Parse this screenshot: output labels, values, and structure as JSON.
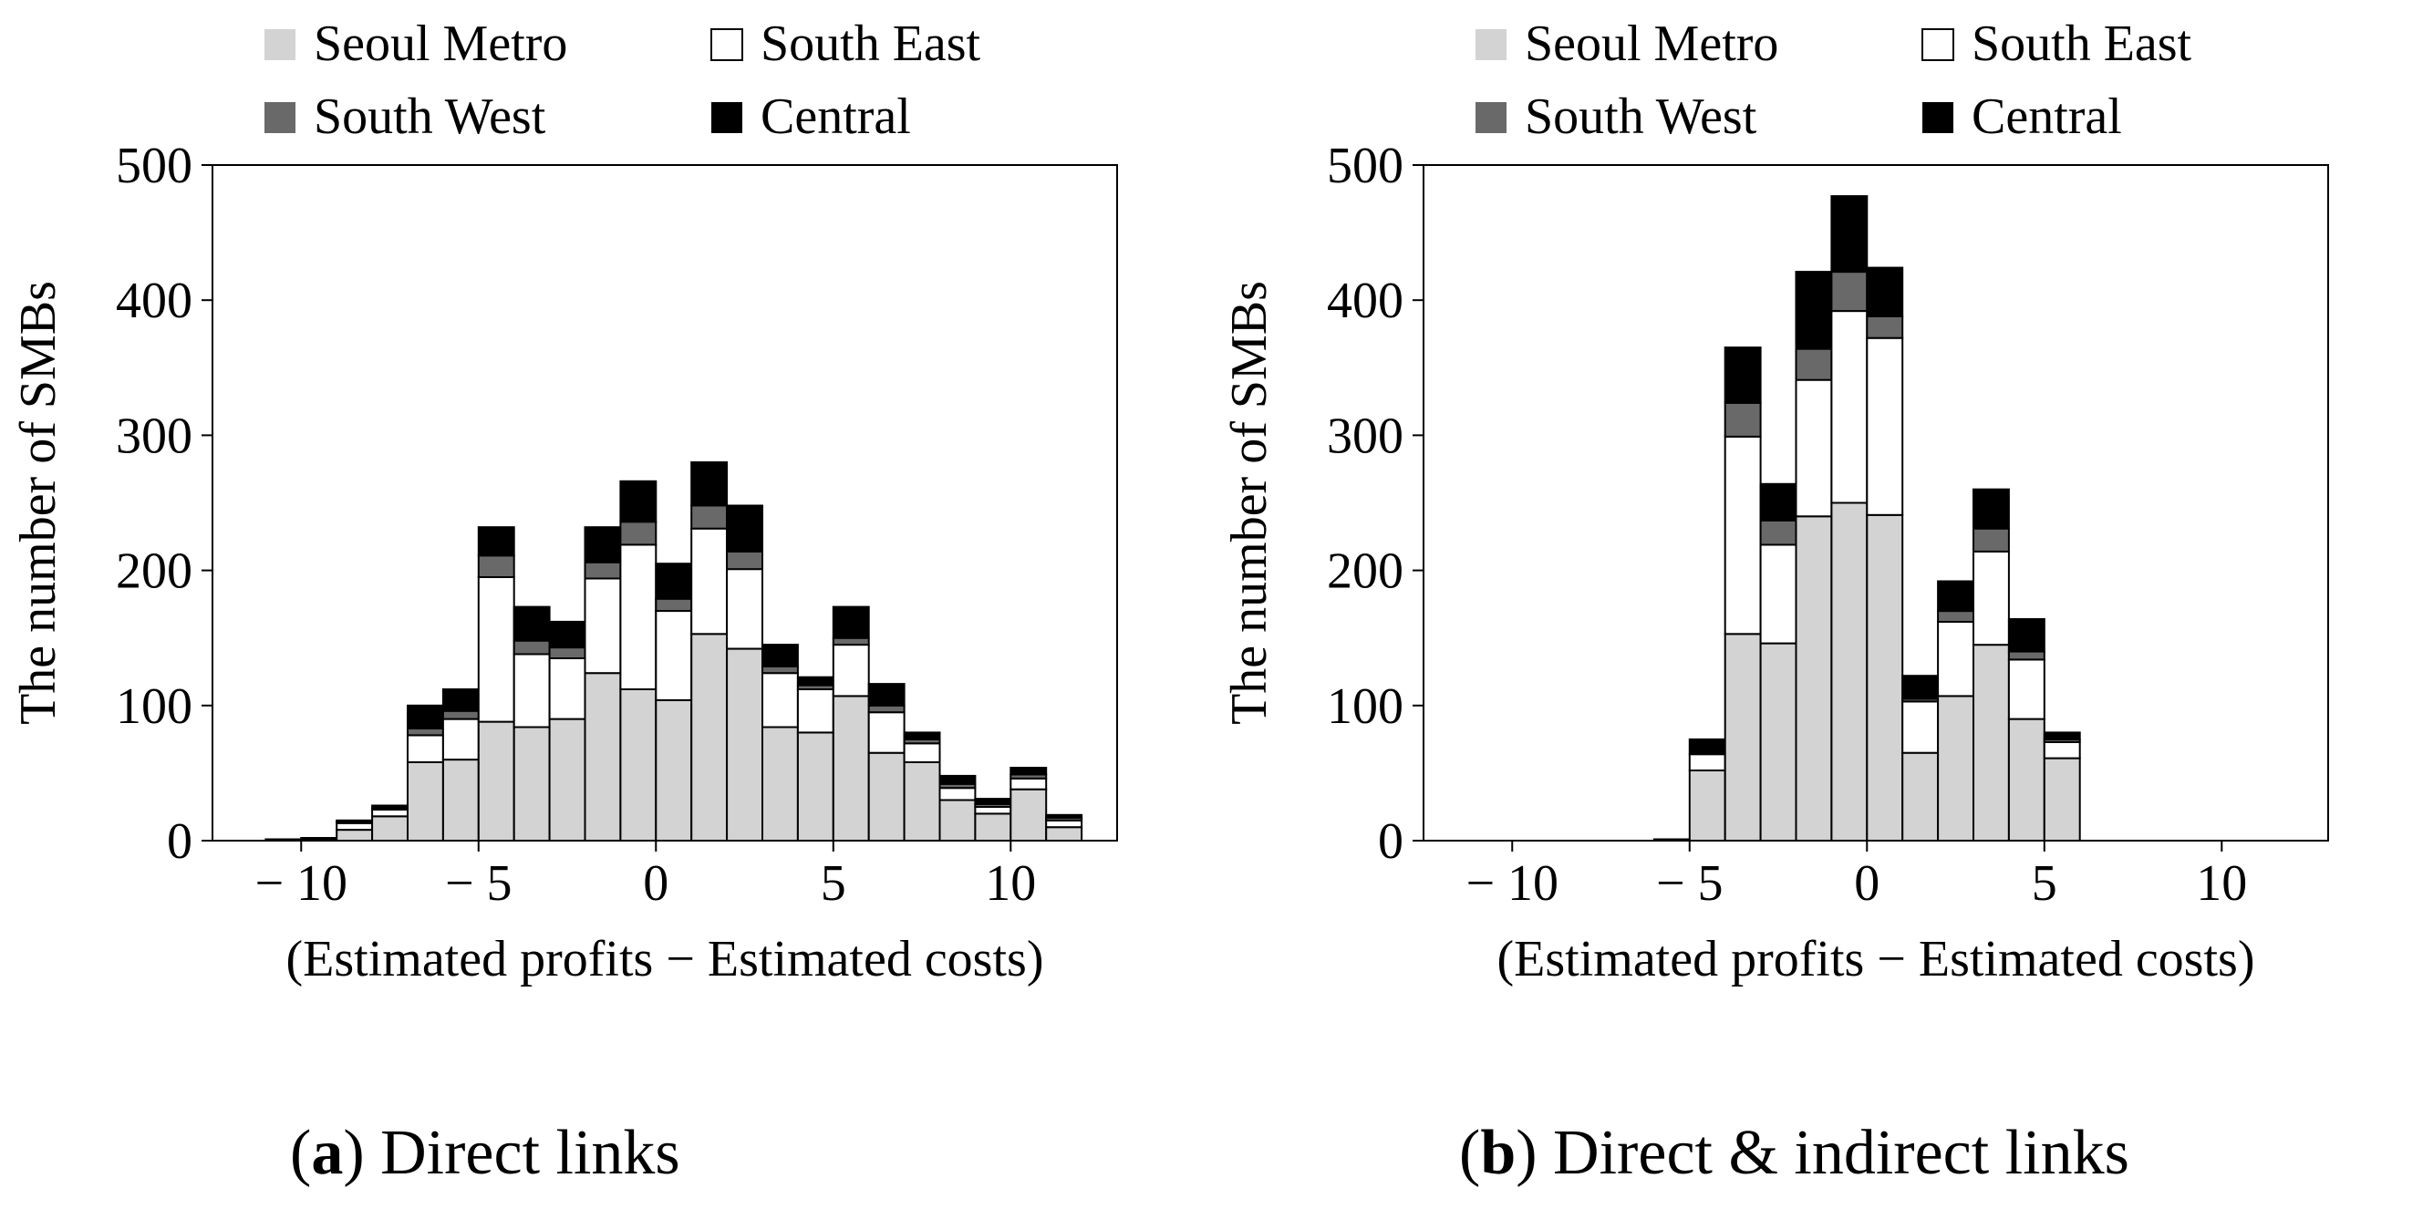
{
  "legend_colors": {
    "Seoul Metro": "#d3d3d3",
    "South East": "#ffffff",
    "South West": "#696969",
    "Central": "#000000"
  },
  "chart_data": [
    {
      "type": "bar",
      "stacked": true,
      "xlabel": "(Estimated profits − Estimated costs)",
      "ylabel": "The number of SMBs",
      "ylim": [
        0,
        500
      ],
      "yticks": [
        "0",
        "100",
        "200",
        "300",
        "400",
        "500"
      ],
      "xticks": [
        {
          "value": -10,
          "label": "− 10"
        },
        {
          "value": -5,
          "label": "− 5"
        },
        {
          "value": 0,
          "label": "0"
        },
        {
          "value": 5,
          "label": "5"
        },
        {
          "value": 10,
          "label": "10"
        }
      ],
      "xlim": [
        -12.5,
        13.0
      ],
      "bin_width": 1,
      "grid": false,
      "legend_position": "top",
      "legend": [
        "Seoul Metro",
        "South East",
        "South West",
        "Central"
      ],
      "caption_letter": "a",
      "caption_text": ") Direct links",
      "x": [
        -11.5,
        -10.5,
        -9.5,
        -8.5,
        -7.5,
        -6.5,
        -5.5,
        -4.5,
        -3.5,
        -2.5,
        -1.5,
        -0.5,
        0.5,
        1.5,
        2.5,
        3.5,
        4.5,
        5.5,
        6.5,
        7.5,
        8.5,
        9.5,
        10.5,
        11.5
      ],
      "series": [
        {
          "name": "Seoul Metro",
          "values": [
            0,
            1,
            1,
            8,
            18,
            58,
            60,
            88,
            84,
            90,
            124,
            112,
            104,
            153,
            142,
            84,
            80,
            107,
            65,
            58,
            30,
            20,
            38,
            10
          ]
        },
        {
          "name": "South East",
          "values": [
            0,
            0,
            1,
            5,
            5,
            20,
            30,
            107,
            54,
            45,
            70,
            107,
            66,
            78,
            59,
            40,
            32,
            38,
            30,
            14,
            9,
            5,
            8,
            5
          ]
        },
        {
          "name": "South West",
          "values": [
            0,
            0,
            0,
            1,
            1,
            5,
            6,
            16,
            10,
            8,
            12,
            17,
            9,
            17,
            13,
            5,
            3,
            5,
            5,
            3,
            3,
            2,
            3,
            2
          ]
        },
        {
          "name": "Central",
          "values": [
            0,
            0,
            0,
            1,
            2,
            17,
            16,
            21,
            25,
            19,
            26,
            30,
            26,
            32,
            34,
            16,
            6,
            23,
            16,
            5,
            6,
            4,
            5,
            2
          ]
        }
      ]
    },
    {
      "type": "bar",
      "stacked": true,
      "xlabel": "(Estimated profits − Estimated costs)",
      "ylabel": "The number of SMBs",
      "ylim": [
        0,
        500
      ],
      "yticks": [
        "0",
        "100",
        "200",
        "300",
        "400",
        "500"
      ],
      "xticks": [
        {
          "value": -10,
          "label": "− 10"
        },
        {
          "value": -5,
          "label": "− 5"
        },
        {
          "value": 0,
          "label": "0"
        },
        {
          "value": 5,
          "label": "5"
        },
        {
          "value": 10,
          "label": "10"
        }
      ],
      "xlim": [
        -12.5,
        13.0
      ],
      "bin_width": 1,
      "grid": false,
      "legend_position": "top",
      "legend": [
        "Seoul Metro",
        "South East",
        "South West",
        "Central"
      ],
      "caption_letter": "b",
      "caption_text": ") Direct & indirect links",
      "x": [
        -11.5,
        -10.5,
        -9.5,
        -8.5,
        -7.5,
        -6.5,
        -5.5,
        -4.5,
        -3.5,
        -2.5,
        -1.5,
        -0.5,
        0.5,
        1.5,
        2.5,
        3.5,
        4.5,
        5.5,
        6.5,
        7.5,
        8.5,
        9.5,
        10.5,
        11.5
      ],
      "series": [
        {
          "name": "Seoul Metro",
          "values": [
            0,
            0,
            0,
            0,
            0,
            0,
            0,
            52,
            153,
            146,
            240,
            250,
            241,
            65,
            107,
            145,
            90,
            61,
            0,
            0,
            0,
            0,
            0,
            0
          ]
        },
        {
          "name": "South East",
          "values": [
            0,
            0,
            0,
            0,
            0,
            0,
            1,
            12,
            146,
            73,
            101,
            142,
            131,
            38,
            55,
            69,
            44,
            12,
            0,
            0,
            0,
            0,
            0,
            0
          ]
        },
        {
          "name": "South West",
          "values": [
            0,
            0,
            0,
            0,
            0,
            0,
            0,
            0,
            25,
            18,
            23,
            29,
            16,
            2,
            8,
            17,
            6,
            2,
            0,
            0,
            0,
            0,
            0,
            0
          ]
        },
        {
          "name": "Central",
          "values": [
            0,
            0,
            0,
            0,
            0,
            0,
            0,
            11,
            41,
            27,
            57,
            56,
            36,
            17,
            22,
            29,
            24,
            5,
            0,
            0,
            0,
            0,
            0,
            0
          ]
        }
      ]
    }
  ]
}
